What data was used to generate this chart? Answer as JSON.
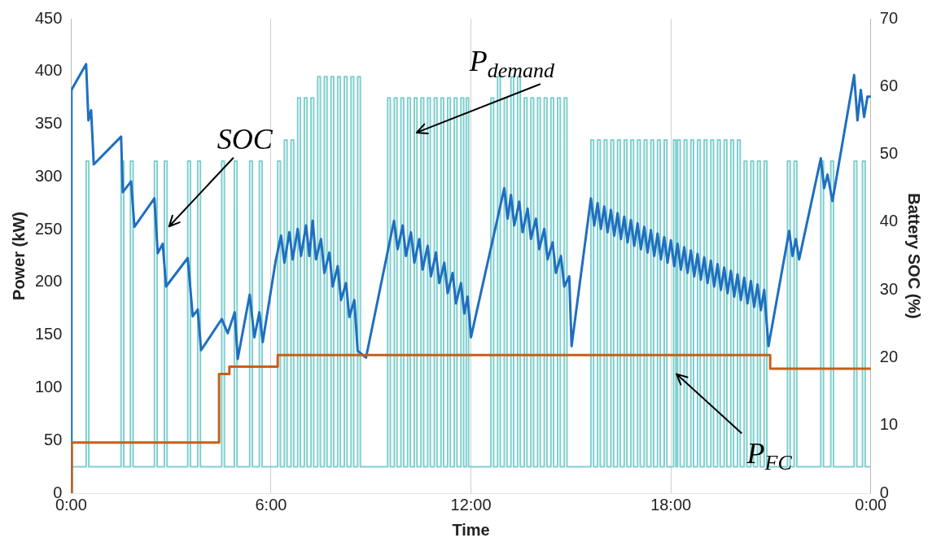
{
  "chart_data": {
    "type": "line",
    "xlabel": "Time",
    "ylabel": "Power (kW)",
    "y2label": "Battery SOC (%)",
    "xlim": [
      0,
      24
    ],
    "xticks": [
      {
        "value": 0,
        "label": "0:00"
      },
      {
        "value": 6,
        "label": "6:00"
      },
      {
        "value": 12,
        "label": "12:00"
      },
      {
        "value": 18,
        "label": "18:00"
      },
      {
        "value": 24,
        "label": "0:00"
      }
    ],
    "ylim": [
      0,
      450
    ],
    "yticks": [
      0,
      50,
      100,
      150,
      200,
      250,
      300,
      350,
      400,
      450
    ],
    "y2lim": [
      0,
      70
    ],
    "y2ticks": [
      0,
      10,
      20,
      30,
      40,
      50,
      60,
      70
    ],
    "grid": "x",
    "legend": false,
    "marker": "none",
    "series": [
      {
        "type": "step",
        "color": "#7fcfcf",
        "x": [
          0,
          0.45,
          0.53,
          1.5,
          1.58,
          1.78,
          1.86,
          2.5,
          2.58,
          2.8,
          2.88,
          3.5,
          3.58,
          3.8,
          3.88,
          4.52,
          4.6,
          4.9,
          4.98,
          5.36,
          5.44,
          5.65,
          5.73,
          6.2,
          6.28,
          6.4,
          6.48,
          6.6,
          6.68,
          6.8,
          6.88,
          7.0,
          7.08,
          7.2,
          7.28,
          7.4,
          7.48,
          7.6,
          7.68,
          7.8,
          7.88,
          8.0,
          8.08,
          8.2,
          8.28,
          8.4,
          8.48,
          8.6,
          8.68,
          9.5,
          9.58,
          9.7,
          9.78,
          9.9,
          9.98,
          10.1,
          10.18,
          10.3,
          10.38,
          10.5,
          10.58,
          10.7,
          10.78,
          10.9,
          10.98,
          11.1,
          11.18,
          11.3,
          11.38,
          11.5,
          11.58,
          11.7,
          11.78,
          11.86,
          11.93,
          12.6,
          12.68,
          12.8,
          12.88,
          13.0,
          13.08,
          13.2,
          13.28,
          13.4,
          13.48,
          13.6,
          13.68,
          13.8,
          13.88,
          14.0,
          14.08,
          14.2,
          14.28,
          14.4,
          14.48,
          14.6,
          14.68,
          14.8,
          14.88,
          15.6,
          15.68,
          15.8,
          15.88,
          16.0,
          16.08,
          16.2,
          16.28,
          16.4,
          16.48,
          16.6,
          16.68,
          16.8,
          16.88,
          17.0,
          17.08,
          17.2,
          17.28,
          17.4,
          17.48,
          17.6,
          17.68,
          17.8,
          17.88,
          18.08,
          18.15,
          18.2,
          18.28,
          18.4,
          18.48,
          18.6,
          18.68,
          18.8,
          18.88,
          19.0,
          19.08,
          19.2,
          19.28,
          19.4,
          19.48,
          19.6,
          19.68,
          19.8,
          19.88,
          20.0,
          20.08,
          20.2,
          20.28,
          20.4,
          20.48,
          20.6,
          20.68,
          20.8,
          20.88,
          21.5,
          21.58,
          21.7,
          21.78,
          22.5,
          22.58,
          22.8,
          22.88,
          23.5,
          23.58,
          23.75,
          23.83,
          24
        ],
        "values": [
          25,
          315,
          25,
          315,
          25,
          315,
          25,
          315,
          25,
          315,
          25,
          315,
          25,
          315,
          25,
          315,
          25,
          315,
          25,
          315,
          25,
          315,
          25,
          315,
          25,
          335,
          25,
          335,
          25,
          375,
          25,
          375,
          25,
          375,
          25,
          395,
          25,
          395,
          25,
          395,
          25,
          395,
          25,
          395,
          25,
          395,
          25,
          395,
          25,
          375,
          25,
          375,
          25,
          375,
          25,
          375,
          25,
          375,
          25,
          375,
          25,
          375,
          25,
          375,
          25,
          375,
          25,
          375,
          25,
          375,
          25,
          375,
          25,
          375,
          25,
          375,
          25,
          395,
          25,
          375,
          25,
          395,
          25,
          395,
          25,
          375,
          25,
          375,
          25,
          375,
          25,
          375,
          25,
          375,
          25,
          375,
          25,
          375,
          25,
          335,
          25,
          335,
          25,
          335,
          25,
          335,
          25,
          335,
          25,
          335,
          25,
          335,
          25,
          335,
          25,
          335,
          25,
          335,
          25,
          335,
          25,
          335,
          25,
          335,
          25,
          335,
          25,
          335,
          25,
          335,
          25,
          335,
          25,
          335,
          25,
          335,
          25,
          335,
          25,
          335,
          25,
          335,
          25,
          335,
          25,
          315,
          25,
          315,
          25,
          315,
          25,
          315,
          25,
          315,
          25,
          315,
          25,
          315,
          25,
          315,
          25,
          315,
          25,
          315,
          25,
          25
        ]
      },
      {
        "type": "line",
        "axis": "y2",
        "color": "#1f6fc0",
        "x": [
          0,
          0.01,
          0.45,
          0.52,
          0.6,
          0.68,
          1.5,
          1.55,
          1.8,
          1.9,
          2.5,
          2.6,
          2.75,
          2.85,
          3.5,
          3.65,
          3.8,
          3.9,
          4.52,
          4.7,
          4.91,
          5.0,
          5.36,
          5.5,
          5.65,
          5.75,
          6.14,
          6.3,
          6.4,
          6.55,
          6.65,
          6.8,
          6.9,
          7.05,
          7.15,
          7.25,
          7.35,
          7.5,
          7.6,
          7.75,
          7.85,
          8.0,
          8.1,
          8.25,
          8.35,
          8.5,
          8.6,
          8.85,
          9.69,
          9.8,
          9.95,
          10.05,
          10.2,
          10.3,
          10.45,
          10.55,
          10.7,
          10.8,
          10.95,
          11.05,
          11.2,
          11.3,
          11.45,
          11.55,
          11.7,
          11.8,
          11.9,
          12.0,
          13.0,
          13.1,
          13.2,
          13.3,
          13.45,
          13.55,
          13.7,
          13.8,
          13.95,
          14.05,
          14.2,
          14.3,
          14.45,
          14.55,
          14.7,
          14.8,
          14.95,
          15.02,
          15.6,
          15.7,
          15.8,
          15.9,
          16.0,
          16.1,
          16.2,
          16.3,
          16.4,
          16.5,
          16.6,
          16.7,
          16.8,
          16.9,
          17.0,
          17.1,
          17.2,
          17.3,
          17.4,
          17.5,
          17.6,
          17.7,
          17.8,
          17.9,
          18.0,
          18.1,
          18.2,
          18.3,
          18.4,
          18.5,
          18.6,
          18.7,
          18.8,
          18.9,
          19.0,
          19.1,
          19.2,
          19.3,
          19.4,
          19.5,
          19.6,
          19.7,
          19.8,
          19.9,
          20.0,
          20.1,
          20.2,
          20.3,
          20.4,
          20.5,
          20.6,
          20.7,
          20.8,
          20.93,
          21.55,
          21.65,
          21.75,
          21.85,
          22.5,
          22.6,
          22.7,
          22.85,
          23.5,
          23.6,
          23.7,
          23.8,
          23.9,
          24
        ],
        "values": [
          0,
          59.5,
          63.3,
          55,
          56.5,
          48.5,
          52.6,
          44.4,
          46,
          39.3,
          43.5,
          35.4,
          36.8,
          30.5,
          34.7,
          26.1,
          27.1,
          21.1,
          25.7,
          23.6,
          26.7,
          19.8,
          29.3,
          23,
          26.7,
          22.3,
          34.3,
          38,
          34,
          38.5,
          34.5,
          39,
          35,
          39.5,
          35,
          40.2,
          34.5,
          37.5,
          32.5,
          35.5,
          30.5,
          33.5,
          28.5,
          31,
          26,
          28.5,
          21,
          20,
          40.2,
          36,
          39.5,
          35,
          38.5,
          34,
          37.5,
          33,
          36.5,
          32,
          35.5,
          31,
          34,
          29.5,
          32.5,
          28,
          31,
          26.5,
          29,
          23,
          45,
          40.5,
          44,
          39.5,
          43,
          38.5,
          42,
          37.5,
          40.5,
          36,
          39,
          34.5,
          37,
          32.5,
          35,
          30.5,
          32,
          21.7,
          43.5,
          39.5,
          42.8,
          39,
          42.3,
          38.5,
          41.8,
          38,
          41.3,
          37.5,
          40.8,
          37,
          40.3,
          36.5,
          39.8,
          36,
          39.3,
          35.5,
          38.8,
          35,
          38.3,
          34.5,
          37.8,
          34,
          37.3,
          33.5,
          36.8,
          33,
          36.3,
          32.5,
          35.8,
          32,
          35.3,
          31.5,
          34.8,
          31,
          34.3,
          30.5,
          33.8,
          30,
          33.3,
          29.5,
          32.8,
          29,
          32.3,
          28.5,
          31.8,
          28,
          31.3,
          27.5,
          30.8,
          27,
          30,
          21.7,
          38.7,
          35,
          37.5,
          34.5,
          49.4,
          45,
          47,
          43.1,
          61.7,
          55,
          59.5,
          55.5,
          58.5,
          58.5
        ]
      },
      {
        "type": "step",
        "color": "#c5601a",
        "x": [
          0,
          0.02,
          4.44,
          4.75,
          6.2,
          20.98,
          24
        ],
        "values": [
          0,
          48,
          113,
          120,
          131,
          118,
          118
        ]
      }
    ],
    "annotations": [
      {
        "text": "SOC",
        "x": 2.94,
        "y": 253
      },
      {
        "text": "P$_{demand}$",
        "x": 10.37,
        "y": 342
      },
      {
        "text": "P$_{FC}$",
        "x": 18.17,
        "y": 113
      }
    ]
  }
}
